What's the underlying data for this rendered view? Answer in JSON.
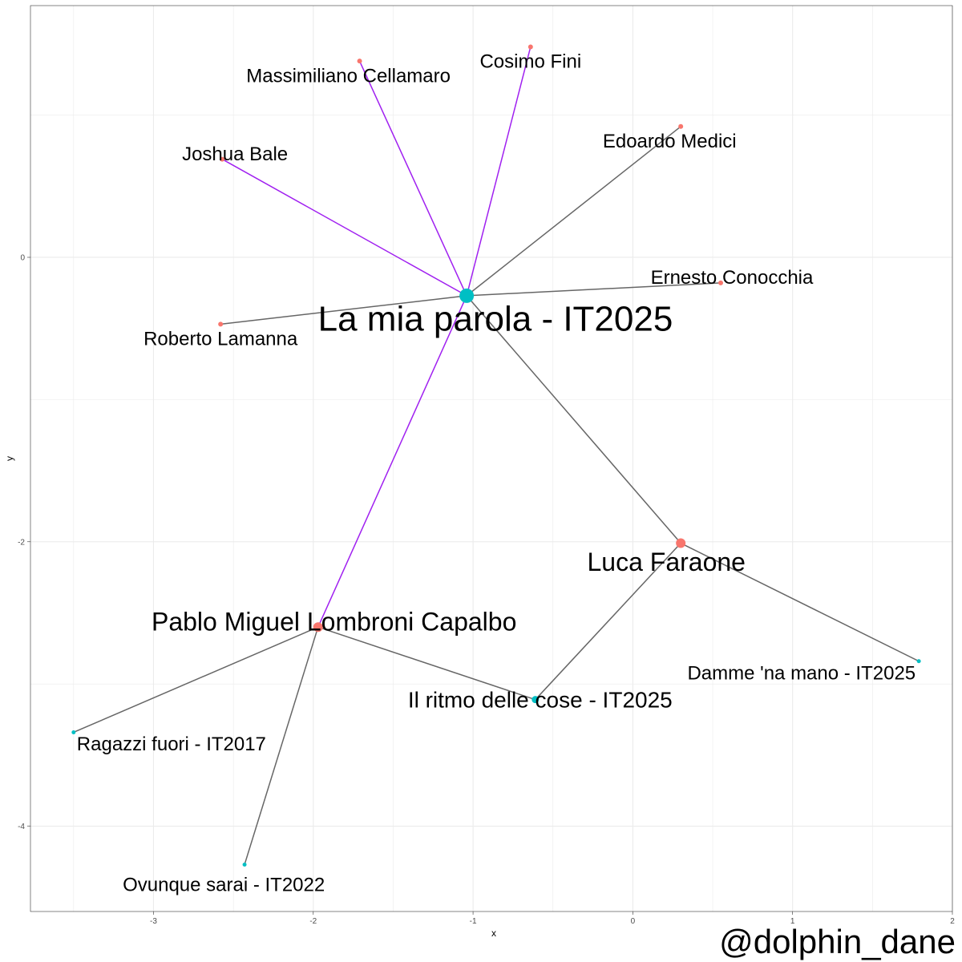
{
  "chart_data": {
    "type": "network",
    "title": "",
    "xlabel": "x",
    "ylabel": "y",
    "xlim": [
      -3.77,
      2.0
    ],
    "ylim": [
      -4.6,
      1.77
    ],
    "x_ticks": [
      -3,
      -2,
      -1,
      0,
      1,
      2
    ],
    "y_ticks": [
      -4,
      -2,
      0
    ],
    "grid": true,
    "colors": {
      "song": "#00bfc4",
      "person": "#f8766d",
      "edge_default": "#666666",
      "edge_highlight": "#a020f0"
    },
    "nodes": [
      {
        "id": "la_mia_parola",
        "label": "La mia parola - IT2025",
        "kind": "song",
        "x": -1.04,
        "y": -0.27,
        "size": 9,
        "label_size": 44,
        "label_dx": 0.18,
        "label_dy": -0.16,
        "anchor": "middle"
      },
      {
        "id": "cosimo",
        "label": "Cosimo Fini",
        "kind": "person",
        "x": -0.64,
        "y": 1.48,
        "size": 3,
        "label_size": 24,
        "label_dx": 0.0,
        "label_dy": -0.1,
        "anchor": "middle"
      },
      {
        "id": "massimiliano",
        "label": "Massimiliano Cellamaro",
        "kind": "person",
        "x": -1.71,
        "y": 1.38,
        "size": 3,
        "label_size": 24,
        "label_dx": -0.07,
        "label_dy": -0.1,
        "anchor": "middle"
      },
      {
        "id": "edoardo",
        "label": "Edoardo Medici",
        "kind": "person",
        "x": 0.3,
        "y": 0.92,
        "size": 3,
        "label_size": 24,
        "label_dx": -0.07,
        "label_dy": -0.1,
        "anchor": "middle"
      },
      {
        "id": "joshua",
        "label": "Joshua Bale",
        "kind": "person",
        "x": -2.57,
        "y": 0.69,
        "size": 3,
        "label_size": 24,
        "label_dx": 0.08,
        "label_dy": 0.04,
        "anchor": "middle"
      },
      {
        "id": "ernesto",
        "label": "Ernesto Conocchia",
        "kind": "person",
        "x": 0.55,
        "y": -0.18,
        "size": 3,
        "label_size": 24,
        "label_dx": 0.07,
        "label_dy": 0.04,
        "anchor": "middle"
      },
      {
        "id": "roberto",
        "label": "Roberto Lamanna",
        "kind": "person",
        "x": -2.58,
        "y": -0.47,
        "size": 3,
        "label_size": 24,
        "label_dx": 0.0,
        "label_dy": -0.1,
        "anchor": "middle"
      },
      {
        "id": "luca",
        "label": "Luca Faraone",
        "kind": "person",
        "x": 0.3,
        "y": -2.01,
        "size": 6,
        "label_size": 32,
        "label_dx": -0.09,
        "label_dy": -0.13,
        "anchor": "middle"
      },
      {
        "id": "pablo",
        "label": "Pablo Miguel Lombroni Capalbo",
        "kind": "person",
        "x": -1.97,
        "y": -2.6,
        "size": 6,
        "label_size": 32,
        "label_dx": 0.1,
        "label_dy": 0.04,
        "anchor": "middle"
      },
      {
        "id": "ritmo",
        "label": "Il ritmo delle cose - IT2025",
        "kind": "song",
        "x": -0.61,
        "y": -3.11,
        "size": 4.5,
        "label_size": 28,
        "label_dx": 0.03,
        "label_dy": 0.0,
        "anchor": "middle"
      },
      {
        "id": "damme",
        "label": "Damme 'na mano - IT2025",
        "kind": "song",
        "x": 1.79,
        "y": -2.84,
        "size": 2.5,
        "label_size": 24,
        "label_dx": -0.02,
        "label_dy": -0.08,
        "anchor": "end"
      },
      {
        "id": "ragazzi",
        "label": "Ragazzi fuori - IT2017",
        "kind": "song",
        "x": -3.5,
        "y": -3.34,
        "size": 2.5,
        "label_size": 24,
        "label_dx": 0.02,
        "label_dy": -0.08,
        "anchor": "start"
      },
      {
        "id": "ovunque",
        "label": "Ovunque sarai - IT2022",
        "kind": "song",
        "x": -2.43,
        "y": -4.27,
        "size": 2.5,
        "label_size": 24,
        "label_dx": -0.13,
        "label_dy": -0.14,
        "anchor": "middle"
      }
    ],
    "edges": [
      {
        "from": "la_mia_parola",
        "to": "cosimo",
        "highlight": true
      },
      {
        "from": "la_mia_parola",
        "to": "massimiliano",
        "highlight": true
      },
      {
        "from": "la_mia_parola",
        "to": "joshua",
        "highlight": true
      },
      {
        "from": "la_mia_parola",
        "to": "pablo",
        "highlight": true
      },
      {
        "from": "la_mia_parola",
        "to": "edoardo",
        "highlight": false
      },
      {
        "from": "la_mia_parola",
        "to": "ernesto",
        "highlight": false
      },
      {
        "from": "la_mia_parola",
        "to": "roberto",
        "highlight": false
      },
      {
        "from": "la_mia_parola",
        "to": "luca",
        "highlight": false
      },
      {
        "from": "luca",
        "to": "ritmo",
        "highlight": false
      },
      {
        "from": "luca",
        "to": "damme",
        "highlight": false
      },
      {
        "from": "pablo",
        "to": "ritmo",
        "highlight": false
      },
      {
        "from": "pablo",
        "to": "ragazzi",
        "highlight": false
      },
      {
        "from": "pablo",
        "to": "ovunque",
        "highlight": false
      }
    ]
  },
  "watermark": "@dolphin_dane"
}
